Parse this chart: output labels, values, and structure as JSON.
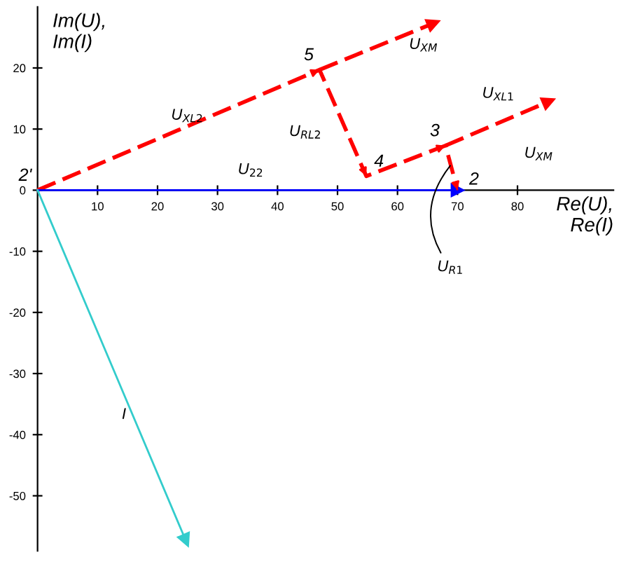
{
  "chart_data": {
    "type": "line",
    "xlabel": "Re(U),\nRe(I)",
    "ylabel": "Im(U),\nIm(I)",
    "xlim": [
      0,
      96
    ],
    "ylim": [
      -59,
      30
    ],
    "xticks": [
      10,
      20,
      30,
      40,
      50,
      60,
      70,
      80
    ],
    "yticks": [
      -50,
      -40,
      -30,
      -20,
      -10,
      0,
      10,
      20
    ],
    "grid": false,
    "series": [
      {
        "x": [
          0,
          47,
          54.8,
          68,
          70
        ],
        "values": [
          0,
          19.7,
          2.3,
          7.3,
          0
        ],
        "color": "#ff0000",
        "line_style": "dashed"
      },
      {
        "x": [
          47,
          66
        ],
        "values": [
          19.7,
          27.3
        ],
        "color": "#ff0000",
        "line_style": "dashed"
      },
      {
        "x": [
          68,
          85.2
        ],
        "values": [
          7.3,
          14.5
        ],
        "color": "#ff0000",
        "line_style": "dashed"
      },
      {
        "x": [
          0,
          70
        ],
        "values": [
          0,
          0
        ],
        "color": "#0000ff",
        "line_style": "solid"
      },
      {
        "x": [
          0,
          24.7
        ],
        "values": [
          0,
          -57.3
        ],
        "color": "#33cccc",
        "line_style": "solid"
      }
    ],
    "annotations": [
      {
        "text": "2'",
        "x": 0,
        "y": 0
      },
      {
        "text": "5",
        "x": 47,
        "y": 19.7
      },
      {
        "text": "4",
        "x": 54.8,
        "y": 2.3
      },
      {
        "text": "3",
        "x": 68,
        "y": 7.3
      },
      {
        "text": "2",
        "x": 70,
        "y": 0
      },
      "U$_{XL2}$",
      "U$_{RL2}$",
      "U$_{XM}$",
      "U$_{XL1}$",
      "U$_{XM}$",
      "U$_{22}$",
      {
        "text": "U$_{R1}$",
        "x": 69.2,
        "y": 4.5
      },
      "I"
    ]
  }
}
